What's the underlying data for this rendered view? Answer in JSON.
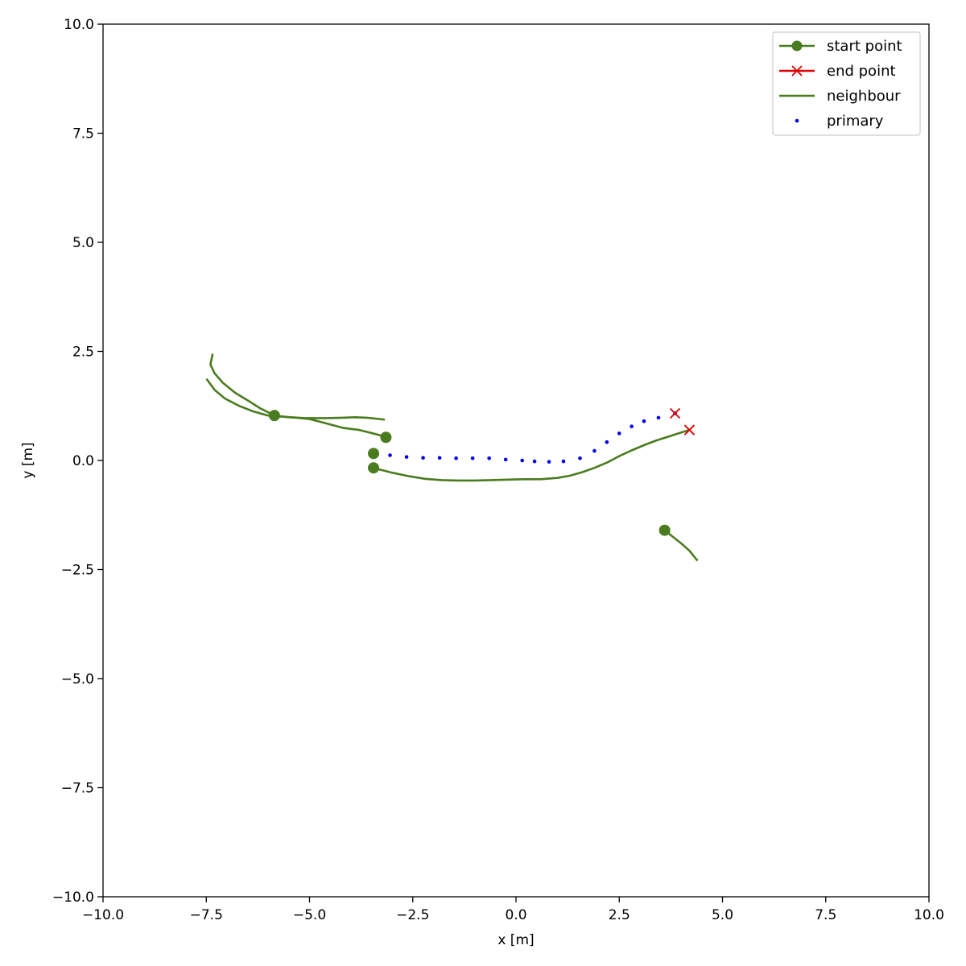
{
  "chart_data": {
    "type": "line",
    "title": "",
    "xlabel": "x [m]",
    "ylabel": "y [m]",
    "xlim": [
      -10,
      10
    ],
    "ylim": [
      -10,
      10
    ],
    "xticks": [
      -10,
      -7.5,
      -5,
      -2.5,
      0,
      2.5,
      5,
      7.5,
      10
    ],
    "yticks": [
      -10,
      -7.5,
      -5,
      -2.5,
      0,
      2.5,
      5,
      7.5,
      10
    ],
    "xtick_labels": [
      "−10.0",
      "−7.5",
      "−5.0",
      "−2.5",
      "0.0",
      "2.5",
      "5.0",
      "7.5",
      "10.0"
    ],
    "ytick_labels": [
      "−10.0",
      "−7.5",
      "−5.0",
      "−2.5",
      "0.0",
      "2.5",
      "5.0",
      "7.5",
      "10.0"
    ],
    "grid": false,
    "legend_position": "top-right",
    "legend": [
      {
        "label": "start point",
        "marker": "circle",
        "line": true,
        "color": "#4a7c1f"
      },
      {
        "label": "end point",
        "marker": "x",
        "line": true,
        "color": "#dd0000"
      },
      {
        "label": "neighbour",
        "marker": "none",
        "line": true,
        "color": "#4a7c1f"
      },
      {
        "label": "primary",
        "marker": "dot",
        "line": false,
        "color": "#0000ee"
      }
    ],
    "series": [
      {
        "role": "neighbour",
        "color": "#4a7c1f",
        "start": [
          -5.85,
          1.03
        ],
        "x": [
          -7.35,
          -7.4,
          -7.3,
          -7.1,
          -6.8,
          -6.5,
          -6.2,
          -5.85,
          -5.5,
          -5.1,
          -4.6,
          -4.2,
          -3.9,
          -3.6,
          -3.4,
          -3.2
        ],
        "y": [
          2.42,
          2.2,
          2.0,
          1.78,
          1.55,
          1.38,
          1.2,
          1.03,
          0.99,
          0.97,
          0.97,
          0.98,
          0.99,
          0.98,
          0.96,
          0.94
        ]
      },
      {
        "role": "neighbour",
        "color": "#4a7c1f",
        "start": [
          -3.15,
          0.53
        ],
        "x": [
          -7.48,
          -7.3,
          -7.05,
          -6.7,
          -6.35,
          -6.0,
          -5.6,
          -5.3,
          -5.0,
          -4.6,
          -4.2,
          -3.8,
          -3.5,
          -3.3,
          -3.15
        ],
        "y": [
          1.85,
          1.62,
          1.42,
          1.25,
          1.12,
          1.03,
          1.0,
          0.98,
          0.95,
          0.85,
          0.75,
          0.7,
          0.63,
          0.58,
          0.53
        ]
      },
      {
        "role": "neighbour",
        "color": "#4a7c1f",
        "start": [
          -3.45,
          -0.17
        ],
        "end": [
          4.2,
          0.7
        ],
        "x": [
          -3.45,
          -3.0,
          -2.6,
          -2.2,
          -1.8,
          -1.4,
          -1.0,
          -0.6,
          -0.2,
          0.2,
          0.6,
          1.0,
          1.3,
          1.6,
          1.9,
          2.2,
          2.5,
          2.8,
          3.1,
          3.4,
          3.7,
          4.0,
          4.2
        ],
        "y": [
          -0.17,
          -0.28,
          -0.36,
          -0.42,
          -0.45,
          -0.46,
          -0.46,
          -0.45,
          -0.44,
          -0.43,
          -0.43,
          -0.4,
          -0.35,
          -0.27,
          -0.17,
          -0.05,
          0.1,
          0.23,
          0.35,
          0.46,
          0.55,
          0.64,
          0.7
        ]
      },
      {
        "role": "neighbour",
        "color": "#4a7c1f",
        "start": [
          3.6,
          -1.6
        ],
        "x": [
          3.6,
          3.8,
          4.0,
          4.2,
          4.38
        ],
        "y": [
          -1.6,
          -1.75,
          -1.9,
          -2.07,
          -2.28
        ]
      },
      {
        "role": "primary",
        "color": "#0000ee",
        "start": [
          -3.45,
          0.16
        ],
        "end": [
          3.85,
          1.08
        ],
        "x": [
          -3.45,
          -3.05,
          -2.65,
          -2.25,
          -1.85,
          -1.45,
          -1.05,
          -0.65,
          -0.25,
          0.15,
          0.45,
          0.8,
          1.15,
          1.55,
          1.9,
          2.2,
          2.5,
          2.8,
          3.1,
          3.45,
          3.85
        ],
        "y": [
          0.16,
          0.12,
          0.08,
          0.06,
          0.06,
          0.05,
          0.05,
          0.05,
          0.02,
          0.0,
          -0.02,
          -0.03,
          -0.02,
          0.05,
          0.22,
          0.42,
          0.62,
          0.78,
          0.9,
          0.98,
          1.08
        ]
      }
    ]
  }
}
